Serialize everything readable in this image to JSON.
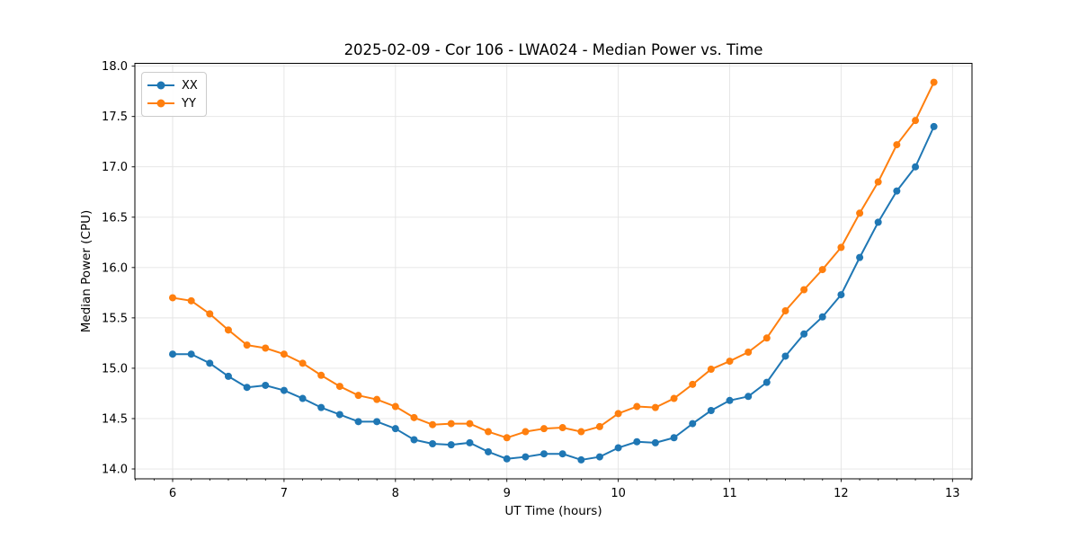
{
  "chart_data": {
    "type": "line",
    "title": "2025-02-09 - Cor 106 - LWA024 - Median Power vs. Time",
    "xlabel": "UT Time (hours)",
    "ylabel": "Median Power (CPU)",
    "x": [
      6.0,
      6.167,
      6.333,
      6.5,
      6.667,
      6.833,
      7.0,
      7.167,
      7.333,
      7.5,
      7.667,
      7.833,
      8.0,
      8.167,
      8.333,
      8.5,
      8.667,
      8.833,
      9.0,
      9.167,
      9.333,
      9.5,
      9.667,
      9.833,
      10.0,
      10.167,
      10.333,
      10.5,
      10.667,
      10.833,
      11.0,
      11.167,
      11.333,
      11.5,
      11.667,
      11.833,
      12.0,
      12.167,
      12.333,
      12.5,
      12.667,
      12.833
    ],
    "series": [
      {
        "name": "XX",
        "color": "#1f77b4",
        "values": [
          15.14,
          15.14,
          15.05,
          14.92,
          14.81,
          14.83,
          14.78,
          14.7,
          14.61,
          14.54,
          14.47,
          14.47,
          14.4,
          14.29,
          14.25,
          14.24,
          14.26,
          14.17,
          14.1,
          14.12,
          14.15,
          14.15,
          14.09,
          14.12,
          14.21,
          14.27,
          14.26,
          14.31,
          14.45,
          14.58,
          14.68,
          14.72,
          14.86,
          15.12,
          15.34,
          15.51,
          15.73,
          16.1,
          16.45,
          16.76,
          17.0,
          17.4
        ]
      },
      {
        "name": "YY",
        "color": "#ff7f0e",
        "values": [
          15.7,
          15.67,
          15.54,
          15.38,
          15.23,
          15.2,
          15.14,
          15.05,
          14.93,
          14.82,
          14.73,
          14.69,
          14.62,
          14.51,
          14.44,
          14.45,
          14.45,
          14.37,
          14.31,
          14.37,
          14.4,
          14.41,
          14.37,
          14.42,
          14.55,
          14.62,
          14.61,
          14.7,
          14.84,
          14.99,
          15.07,
          15.16,
          15.3,
          15.57,
          15.78,
          15.98,
          16.2,
          16.54,
          16.85,
          17.22,
          17.46,
          17.84
        ]
      }
    ],
    "xlim": [
      5.661,
      13.175
    ],
    "ylim": [
      13.902,
      18.028
    ],
    "x_ticks": [
      6,
      7,
      8,
      9,
      10,
      11,
      12,
      13
    ],
    "y_ticks": [
      14.0,
      14.5,
      15.0,
      15.5,
      16.0,
      16.5,
      17.0,
      17.5,
      18.0
    ],
    "x_minor_step": 0.16667,
    "grid": true,
    "legend_position": "upper left",
    "grid_color": "#e4e4e4",
    "axis_color": "#000000",
    "marker": "circle"
  }
}
